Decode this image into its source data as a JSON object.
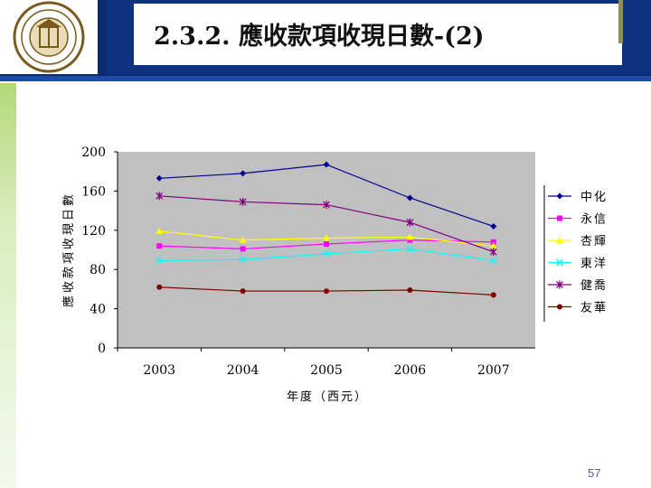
{
  "slide": {
    "title": "2.3.2. 應收款項收現日數-(2)",
    "page_number": "57"
  },
  "colors": {
    "header_blue": "#0b2a6e",
    "plot_bg": "#c0c0c0"
  },
  "chart_data": {
    "type": "line",
    "title": "",
    "xlabel": "年度（西元）",
    "ylabel": "應收款項收現日數",
    "categories": [
      "2003",
      "2004",
      "2005",
      "2006",
      "2007"
    ],
    "ylim": [
      0,
      200
    ],
    "yticks": [
      "200",
      "160",
      "120",
      "80",
      "40",
      "0"
    ],
    "grid": false,
    "legend_position": "right",
    "series": [
      {
        "name": "中化",
        "color": "#00008b",
        "marker": "diamond",
        "values": [
          173,
          178,
          187,
          153,
          124
        ]
      },
      {
        "name": "永信",
        "color": "#ff00ff",
        "marker": "square",
        "values": [
          104,
          101,
          106,
          110,
          108
        ]
      },
      {
        "name": "杏輝",
        "color": "#ffff00",
        "marker": "triangle",
        "values": [
          119,
          110,
          112,
          113,
          104
        ]
      },
      {
        "name": "東洋",
        "color": "#00ffff",
        "marker": "x",
        "values": [
          89,
          90,
          96,
          101,
          89
        ]
      },
      {
        "name": "健喬",
        "color": "#800080",
        "marker": "star",
        "values": [
          155,
          149,
          146,
          128,
          98
        ]
      },
      {
        "name": "友華",
        "color": "#800000",
        "marker": "circle",
        "values": [
          62,
          58,
          58,
          59,
          54
        ]
      }
    ]
  }
}
